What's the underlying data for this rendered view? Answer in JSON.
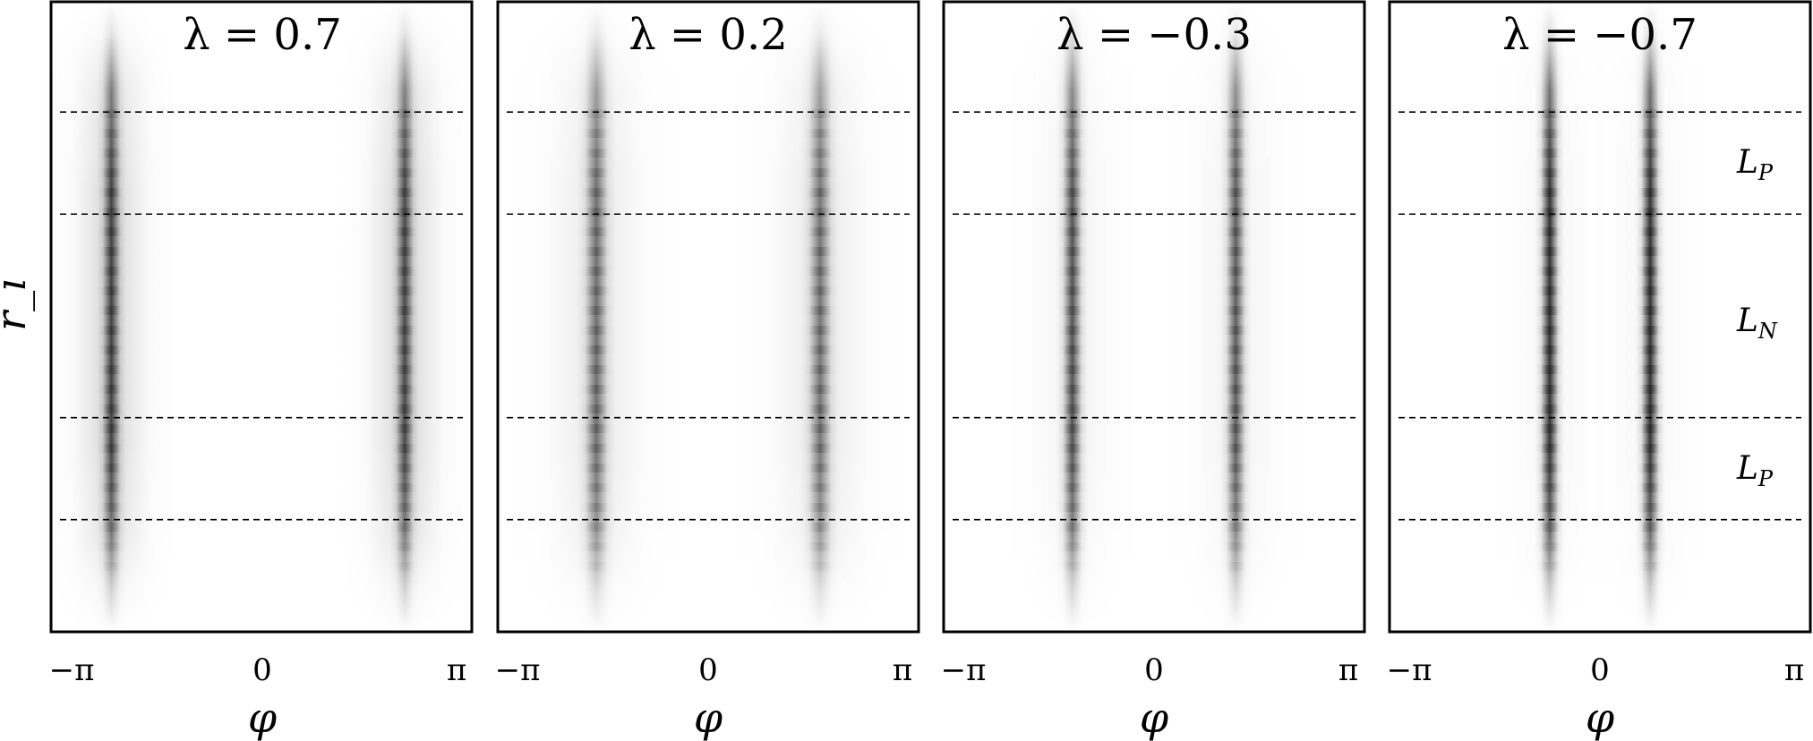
{
  "figure": {
    "ylabel": "r_i",
    "xlabel": "φ",
    "x_ticks": [
      "−π",
      "0",
      "π"
    ],
    "region_labels": [
      {
        "main": "L",
        "sub": "P"
      },
      {
        "main": "L",
        "sub": "N"
      },
      {
        "main": "L",
        "sub": "P"
      }
    ]
  },
  "colors": {
    "background": "#ffffff",
    "frame": "#000000",
    "band_dark": "#1a1a1a",
    "dashed_line": "#000000"
  },
  "chart_data": [
    {
      "type": "heatmap",
      "title": "λ = 0.7",
      "xlabel": "φ",
      "ylabel": "r_i",
      "x_ticks": [
        "−π",
        "0",
        "π"
      ],
      "xlim": [
        -3.14159,
        3.14159
      ],
      "band_phi": [
        -2.24,
        2.14
      ],
      "band_intensity": [
        0.78,
        0.74
      ],
      "band_width": 0.07,
      "haze": 0.18,
      "ripple": 0.35,
      "dashed_levels": [
        0.175,
        0.337,
        0.66,
        0.822
      ],
      "grid": false
    },
    {
      "type": "heatmap",
      "title": "λ = 0.2",
      "xlabel": "φ",
      "ylabel": "",
      "x_ticks": [
        "−π",
        "0",
        "π"
      ],
      "xlim": [
        -3.14159,
        3.14159
      ],
      "band_phi": [
        -1.67,
        1.67
      ],
      "band_intensity": [
        0.58,
        0.55
      ],
      "band_width": 0.09,
      "haze": 0.1,
      "ripple": 0.25,
      "dashed_levels": [
        0.175,
        0.337,
        0.66,
        0.822
      ],
      "grid": false
    },
    {
      "type": "heatmap",
      "title": "λ = −0.3",
      "xlabel": "φ",
      "ylabel": "",
      "x_ticks": [
        "−π",
        "0",
        "π"
      ],
      "xlim": [
        -3.14159,
        3.14159
      ],
      "band_phi": [
        -1.22,
        1.22
      ],
      "band_intensity": [
        0.72,
        0.68
      ],
      "band_width": 0.075,
      "haze": 0.06,
      "ripple": 0.3,
      "dashed_levels": [
        0.175,
        0.337,
        0.66,
        0.822
      ],
      "grid": false
    },
    {
      "type": "heatmap",
      "title": "λ = −0.7",
      "xlabel": "φ",
      "ylabel": "",
      "x_ticks": [
        "−π",
        "0",
        "π"
      ],
      "xlim": [
        -3.14159,
        3.14159
      ],
      "band_phi": [
        -0.75,
        0.75
      ],
      "band_intensity": [
        0.88,
        0.88
      ],
      "band_width": 0.07,
      "haze": 0.04,
      "ripple": 0.45,
      "dashed_levels": [
        0.175,
        0.337,
        0.66,
        0.822
      ],
      "grid": false
    }
  ]
}
